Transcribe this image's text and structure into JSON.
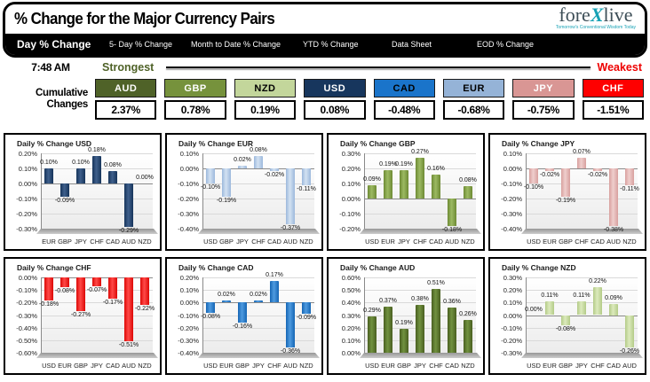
{
  "header": {
    "title": "% Change for the Major Currency Pairs",
    "logo": {
      "part1": "fore",
      "part2": "X",
      "part3": "live",
      "tagline": "Tomorrow's Conventional Wisdom Today"
    }
  },
  "tabs": [
    {
      "label": "Day % Change",
      "active": true
    },
    {
      "label": "5- Day % Change",
      "active": false
    },
    {
      "label": "Month to Date % Change",
      "active": false
    },
    {
      "label": "YTD % Change",
      "active": false
    },
    {
      "label": "Data Sheet",
      "active": false
    },
    {
      "label": "EOD % Change",
      "active": false
    }
  ],
  "summary": {
    "time": "7:48 AM",
    "strongest_label": "Strongest",
    "weakest_label": "Weakest",
    "strongest_color": "#4f6228",
    "weakest_color": "#ee0000",
    "row_label_line1": "Cumulative",
    "row_label_line2": "Changes",
    "currencies": [
      {
        "code": "AUD",
        "value": "2.37%",
        "color": "#4f6228",
        "text_color": "#ffffff"
      },
      {
        "code": "GBP",
        "value": "0.78%",
        "color": "#76923c",
        "text_color": "#ffffff"
      },
      {
        "code": "NZD",
        "value": "0.19%",
        "color": "#c3d69b",
        "text_color": "#000000"
      },
      {
        "code": "USD",
        "value": "0.08%",
        "color": "#17365d",
        "text_color": "#ffffff"
      },
      {
        "code": "CAD",
        "value": "-0.48%",
        "color": "#1a74ca",
        "text_color": "#000000"
      },
      {
        "code": "EUR",
        "value": "-0.68%",
        "color": "#95b3d7",
        "text_color": "#000000"
      },
      {
        "code": "JPY",
        "value": "-0.75%",
        "color": "#d99694",
        "text_color": "#ffffff"
      },
      {
        "code": "CHF",
        "value": "-1.51%",
        "color": "#fe0000",
        "text_color": "#ffffff"
      }
    ]
  },
  "chart_data": [
    {
      "type": "bar",
      "title": "Daily % Change USD",
      "currency": "USD",
      "categories": [
        "EUR",
        "GBP",
        "JPY",
        "CHF",
        "CAD",
        "AUD",
        "NZD"
      ],
      "values": [
        0.1,
        -0.09,
        0.1,
        0.18,
        0.08,
        -0.29,
        0.0
      ],
      "ylim": [
        -0.3,
        0.2
      ],
      "ytick_step": 0.1,
      "grid": true,
      "legend": "none",
      "bar_color": "#16345a",
      "bar_color_light": "#3f608c"
    },
    {
      "type": "bar",
      "title": "Daily % Change EUR",
      "currency": "EUR",
      "categories": [
        "USD",
        "GBP",
        "JPY",
        "CHF",
        "CAD",
        "AUD",
        "NZD"
      ],
      "values": [
        -0.1,
        -0.19,
        0.02,
        0.08,
        -0.02,
        -0.37,
        -0.11
      ],
      "ylim": [
        -0.4,
        0.1
      ],
      "ytick_step": 0.1,
      "grid": true,
      "legend": "none",
      "bar_color": "#9cb8dc",
      "bar_color_light": "#d3e2f2"
    },
    {
      "type": "bar",
      "title": "Daily % Change GBP",
      "currency": "GBP",
      "categories": [
        "USD",
        "EUR",
        "JPY",
        "CHF",
        "CAD",
        "AUD",
        "NZD"
      ],
      "values": [
        0.09,
        0.19,
        0.19,
        0.27,
        0.16,
        -0.18,
        0.08
      ],
      "ylim": [
        -0.2,
        0.3
      ],
      "ytick_step": 0.1,
      "grid": true,
      "legend": "none",
      "bar_color": "#6d8a34",
      "bar_color_light": "#9cba62"
    },
    {
      "type": "bar",
      "title": "Daily % Change JPY",
      "currency": "JPY",
      "categories": [
        "USD",
        "EUR",
        "GBP",
        "CHF",
        "CAD",
        "AUD",
        "NZD"
      ],
      "values": [
        -0.1,
        -0.02,
        -0.19,
        0.07,
        -0.02,
        -0.38,
        -0.11
      ],
      "ylim": [
        -0.4,
        0.1
      ],
      "ytick_step": 0.1,
      "grid": true,
      "legend": "none",
      "bar_color": "#d8a09e",
      "bar_color_light": "#efcecd"
    },
    {
      "type": "bar",
      "title": "Daily % Change CHF",
      "currency": "CHF",
      "categories": [
        "USD",
        "EUR",
        "GBP",
        "JPY",
        "CAD",
        "AUD",
        "NZD"
      ],
      "values": [
        -0.18,
        -0.08,
        -0.27,
        -0.07,
        -0.17,
        -0.51,
        -0.22
      ],
      "ylim": [
        -0.6,
        0.0
      ],
      "ytick_step": 0.1,
      "grid": true,
      "legend": "none",
      "bar_color": "#dd0806",
      "bar_color_light": "#ff4a48"
    },
    {
      "type": "bar",
      "title": "Daily % Change CAD",
      "currency": "CAD",
      "categories": [
        "USD",
        "EUR",
        "GBP",
        "JPY",
        "CHF",
        "AUD",
        "NZD"
      ],
      "values": [
        -0.08,
        0.02,
        -0.16,
        0.02,
        0.17,
        -0.36,
        -0.09
      ],
      "ylim": [
        -0.4,
        0.2
      ],
      "ytick_step": 0.1,
      "grid": true,
      "legend": "none",
      "bar_color": "#1565b4",
      "bar_color_light": "#4e9be0"
    },
    {
      "type": "bar",
      "title": "Daily % Change AUD",
      "currency": "AUD",
      "categories": [
        "USD",
        "EUR",
        "GBP",
        "JPY",
        "CHF",
        "CAD",
        "NZD"
      ],
      "values": [
        0.29,
        0.37,
        0.19,
        0.38,
        0.51,
        0.36,
        0.26
      ],
      "ylim": [
        0.0,
        0.6
      ],
      "ytick_step": 0.1,
      "grid": true,
      "legend": "none",
      "bar_color": "#495e20",
      "bar_color_light": "#719240"
    },
    {
      "type": "bar",
      "title": "Daily % Change NZD",
      "currency": "NZD",
      "categories": [
        "USD",
        "EUR",
        "GBP",
        "JPY",
        "CHF",
        "CAD",
        "AUD"
      ],
      "values": [
        0.0,
        0.11,
        -0.08,
        0.11,
        0.22,
        0.09,
        -0.26
      ],
      "ylim": [
        -0.3,
        0.3
      ],
      "ytick_step": 0.1,
      "grid": true,
      "legend": "none",
      "bar_color": "#b3cb87",
      "bar_color_light": "#dceabd"
    }
  ]
}
